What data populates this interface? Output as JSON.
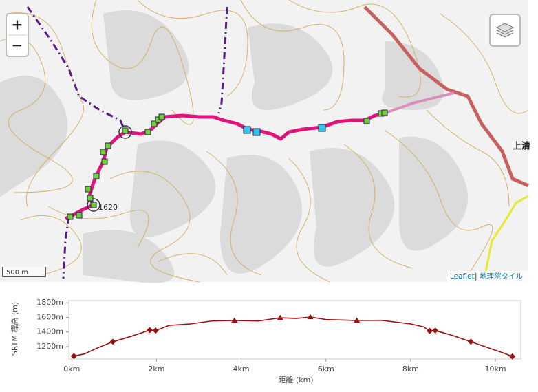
{
  "map": {
    "zoom_in": "+",
    "zoom_out": "−",
    "labels": [
      "1620",
      "上清"
    ],
    "scale": "500 m",
    "attribution": {
      "leaflet": "Leaflet",
      "separator": "|",
      "tiles": "地理院タイル"
    }
  },
  "chart_data": {
    "type": "line",
    "ylabel": "SRTM 標高 (m)",
    "xlabel": "距離 (km)",
    "color": "#9b1010",
    "x": [
      0.05,
      0.3,
      0.6,
      0.97,
      1.4,
      1.84,
      1.98,
      2.3,
      2.8,
      3.3,
      3.84,
      4.4,
      4.92,
      5.3,
      5.63,
      6.0,
      6.73,
      7.3,
      8.0,
      8.3,
      8.45,
      8.58,
      9.0,
      9.42,
      9.9,
      10.2,
      10.4
    ],
    "values": [
      1070,
      1100,
      1180,
      1266,
      1340,
      1425,
      1420,
      1490,
      1510,
      1550,
      1557,
      1550,
      1594,
      1585,
      1604,
      1570,
      1557,
      1560,
      1510,
      1470,
      1415,
      1420,
      1350,
      1266,
      1170,
      1110,
      1065
    ],
    "markers": {
      "x": [
        0.05,
        0.97,
        1.84,
        1.98,
        3.84,
        4.92,
        5.63,
        6.73,
        8.45,
        8.58,
        9.42,
        10.4
      ],
      "values": [
        1070,
        1266,
        1425,
        1420,
        1557,
        1594,
        1604,
        1557,
        1415,
        1420,
        1266,
        1065
      ],
      "shapes": [
        "diamond",
        "diamond",
        "diamond",
        "diamond",
        "triangle",
        "triangle",
        "triangle",
        "triangle",
        "diamond",
        "diamond",
        "diamond",
        "diamond"
      ]
    },
    "xlim": [
      -0.07,
      10.6
    ],
    "ylim": [
      1030,
      1830
    ],
    "xticks": [
      {
        "value": 0,
        "label": "0km"
      },
      {
        "value": 2,
        "label": "2km"
      },
      {
        "value": 4,
        "label": "4km"
      },
      {
        "value": 6,
        "label": "6km"
      },
      {
        "value": 8,
        "label": "8km"
      },
      {
        "value": 10,
        "label": "10km"
      }
    ],
    "yticks": [
      {
        "value": 1200,
        "label": "1200m"
      },
      {
        "value": 1400,
        "label": "1400m"
      },
      {
        "value": 1600,
        "label": "1600m"
      },
      {
        "value": 1800,
        "label": "1800m"
      }
    ],
    "grid": false
  }
}
